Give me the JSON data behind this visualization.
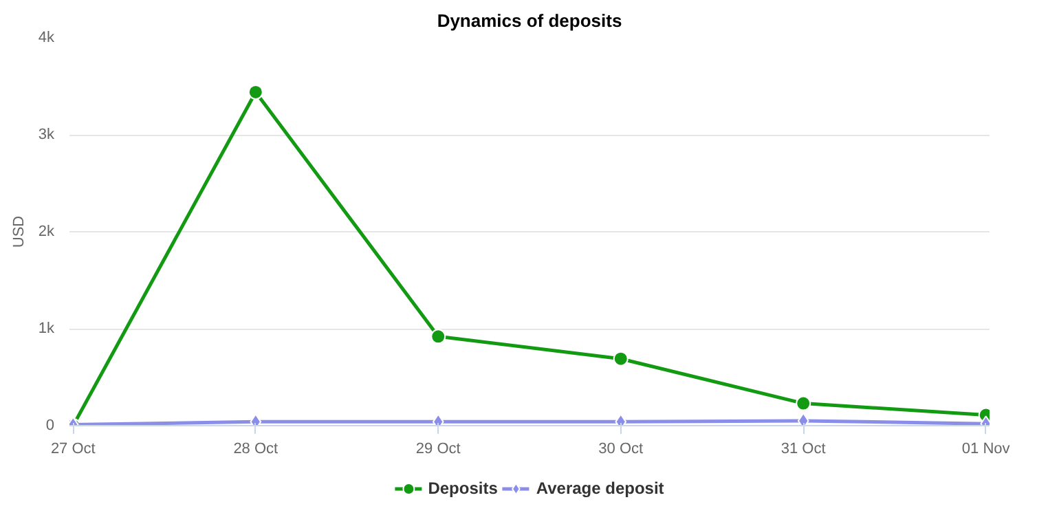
{
  "chart_data": {
    "type": "line",
    "title": "Dynamics of deposits",
    "ylabel": "USD",
    "categories": [
      "27 Oct",
      "28 Oct",
      "29 Oct",
      "30 Oct",
      "31 Oct",
      "01 Nov"
    ],
    "series": [
      {
        "name": "Deposits",
        "color": "#129a12",
        "marker": "circle",
        "values": [
          0,
          3440,
          920,
          690,
          230,
          110
        ]
      },
      {
        "name": "Average deposit",
        "color": "#8a8ee8",
        "marker": "diamond",
        "values": [
          10,
          40,
          40,
          40,
          50,
          20
        ]
      }
    ],
    "ylim": [
      0,
      4000
    ],
    "yticks": [
      0,
      {
        "value": 1000,
        "label": "1k"
      },
      {
        "value": 2000,
        "label": "2k"
      },
      {
        "value": 3000,
        "label": "3k"
      },
      {
        "value": 4000,
        "label": "4k"
      }
    ],
    "grid": "y",
    "legend": "bottom",
    "line_style": "solid"
  }
}
